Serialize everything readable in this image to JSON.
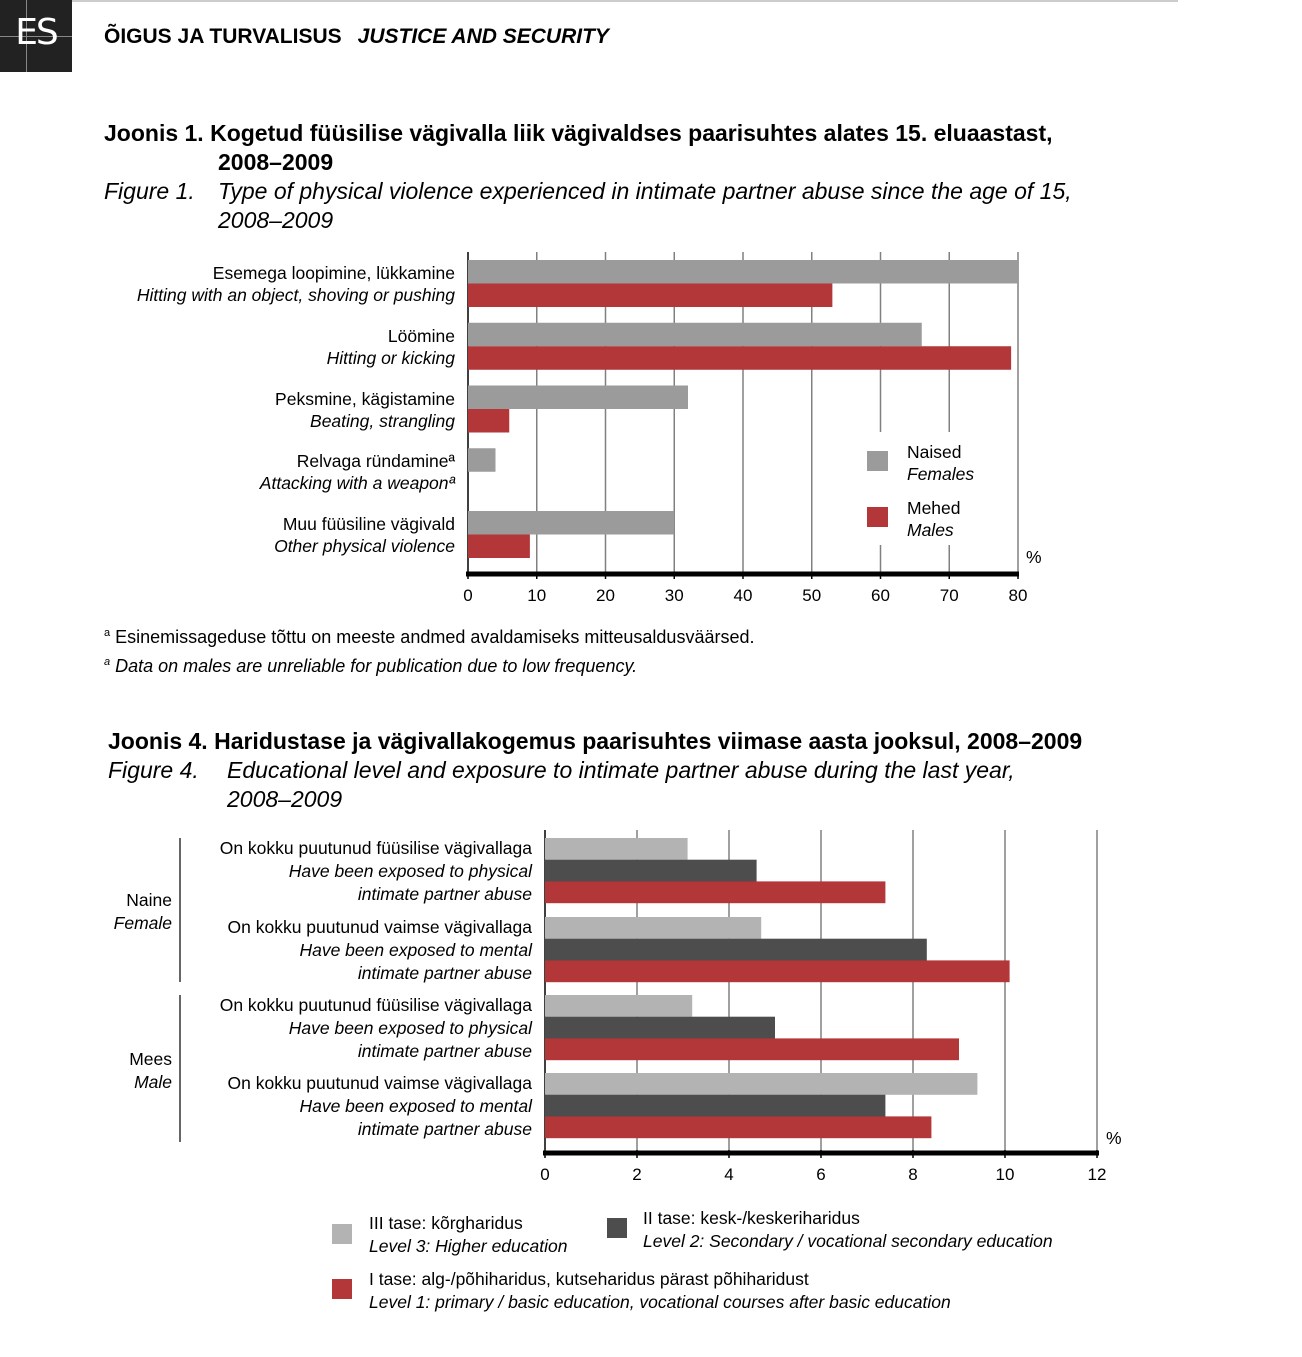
{
  "header": {
    "logo_text": "ES",
    "section_et": "ÕIGUS JA TURVALISUS",
    "section_en": "JUSTICE AND SECURITY"
  },
  "figure1": {
    "title_et_1": "Joonis 1. Kogetud füüsilise vägivalla liik vägivaldses paarisuhtes alates 15. eluaastast,",
    "title_et_2": "2008–2009",
    "title_en_prefix": "Figure 1.",
    "title_en_1": "Type of physical violence experienced in intimate partner abuse since the age of 15,",
    "title_en_2": "2008–2009",
    "footnote_et": "Esinemissageduse tõttu on meeste andmed avaldamiseks mitteusaldusväärsed.",
    "footnote_en": "Data on males are unreliable for publication due to low frequency.",
    "footnote_mark": "a"
  },
  "figure4": {
    "title_et": "Joonis 4. Haridustase ja vägivallakogemus paarisuhtes viimase aasta jooksul, 2008–2009",
    "title_en_prefix": "Figure 4.",
    "title_en_1": "Educational level and exposure to intimate partner abuse during the last year,",
    "title_en_2": "2008–2009"
  },
  "colors": {
    "females": "#9b9b9b",
    "males": "#b33639",
    "level3": "#b3b3b3",
    "level2": "#4d4d4d",
    "level1": "#b33639",
    "grid": "#808080"
  },
  "chart_data": [
    {
      "type": "bar",
      "orientation": "horizontal",
      "title": "Type of physical violence experienced in intimate partner abuse since the age of 15, 2008–2009",
      "categories": [
        {
          "et": "Esemega loopimine, lükkamine",
          "en": "Hitting with an object, shoving or pushing"
        },
        {
          "et": "Löömine",
          "en": "Hitting or kicking"
        },
        {
          "et": "Peksmine, kägistamine",
          "en": "Beating, strangling"
        },
        {
          "et": "Relvaga ründamineª",
          "en": "Attacking with a weaponª"
        },
        {
          "et": "Muu füüsiline vägivald",
          "en": "Other physical violence"
        }
      ],
      "series": [
        {
          "name_et": "Naised",
          "name_en": "Females",
          "values": [
            80,
            66,
            32,
            4,
            30
          ]
        },
        {
          "name_et": "Mehed",
          "name_en": "Males",
          "values": [
            53,
            79,
            6,
            null,
            9
          ]
        }
      ],
      "xlim": [
        0,
        80
      ],
      "xticks": [
        0,
        10,
        20,
        30,
        40,
        50,
        60,
        70,
        80
      ],
      "xlabel": "%",
      "grid": true,
      "legend": "bottom-right"
    },
    {
      "type": "bar",
      "orientation": "horizontal",
      "title": "Educational level and exposure to intimate partner abuse during the last year, 2008–2009",
      "groups": [
        {
          "et": "Naine",
          "en": "Female"
        },
        {
          "et": "Mees",
          "en": "Male"
        }
      ],
      "categories": [
        {
          "group": 0,
          "l1": "On kokku puutunud füüsilise vägivallaga",
          "l2": "Have been exposed to physical",
          "l3": "intimate partner abuse"
        },
        {
          "group": 0,
          "l1": "On kokku puutunud vaimse vägivallaga",
          "l2": "Have been exposed to mental",
          "l3": "intimate partner abuse"
        },
        {
          "group": 1,
          "l1": "On kokku puutunud füüsilise vägivallaga",
          "l2": "Have been exposed to physical",
          "l3": "intimate partner abuse"
        },
        {
          "group": 1,
          "l1": "On kokku puutunud vaimse vägivallaga",
          "l2": "Have been exposed to mental",
          "l3": "intimate partner abuse"
        }
      ],
      "series": [
        {
          "name_et": "III tase: kõrgharidus",
          "name_en": "Level 3: Higher education",
          "values": [
            3.1,
            4.7,
            3.2,
            9.4
          ]
        },
        {
          "name_et": "II tase: kesk-/keskeriharidus",
          "name_en": "Level 2: Secondary / vocational secondary education",
          "values": [
            4.6,
            8.3,
            5.0,
            7.4
          ]
        },
        {
          "name_et": "I tase: alg-/põhiharidus, kutseharidus pärast põhiharidust",
          "name_en": "Level 1: primary / basic education, vocational courses after basic education",
          "values": [
            7.4,
            10.1,
            9.0,
            8.4
          ]
        }
      ],
      "xlim": [
        0,
        12
      ],
      "xticks": [
        0,
        2,
        4,
        6,
        8,
        10,
        12
      ],
      "xlabel": "%",
      "grid": true,
      "legend": "bottom"
    }
  ]
}
